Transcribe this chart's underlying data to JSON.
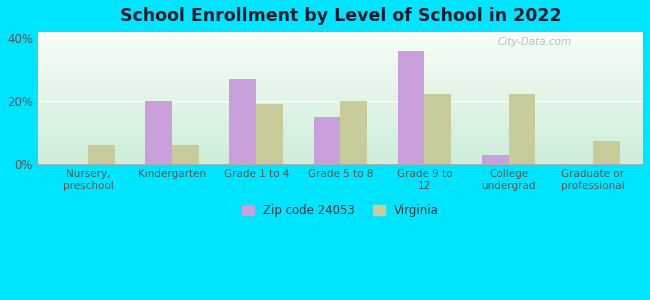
{
  "title": "School Enrollment by Level of School in 2022",
  "categories": [
    "Nursery,\npreschool",
    "Kindergarten",
    "Grade 1 to 4",
    "Grade 5 to 8",
    "Grade 9 to\n12",
    "College\nundergrad",
    "Graduate or\nprofessional"
  ],
  "zip_values": [
    0.0,
    0.2,
    0.27,
    0.15,
    0.36,
    0.03,
    0.0
  ],
  "va_values": [
    0.06,
    0.062,
    0.192,
    0.202,
    0.222,
    0.222,
    0.072
  ],
  "zip_color": "#c9a0dc",
  "va_color": "#c8cc9a",
  "background_outer": "#00e5ff",
  "ylim": [
    0,
    0.42
  ],
  "yticks": [
    0.0,
    0.2,
    0.4
  ],
  "ytick_labels": [
    "0%",
    "20%",
    "40%"
  ],
  "legend_zip": "Zip code 24053",
  "legend_va": "Virginia",
  "watermark": "City-Data.com",
  "bar_width": 0.32,
  "title_color": "#1a1a2e"
}
